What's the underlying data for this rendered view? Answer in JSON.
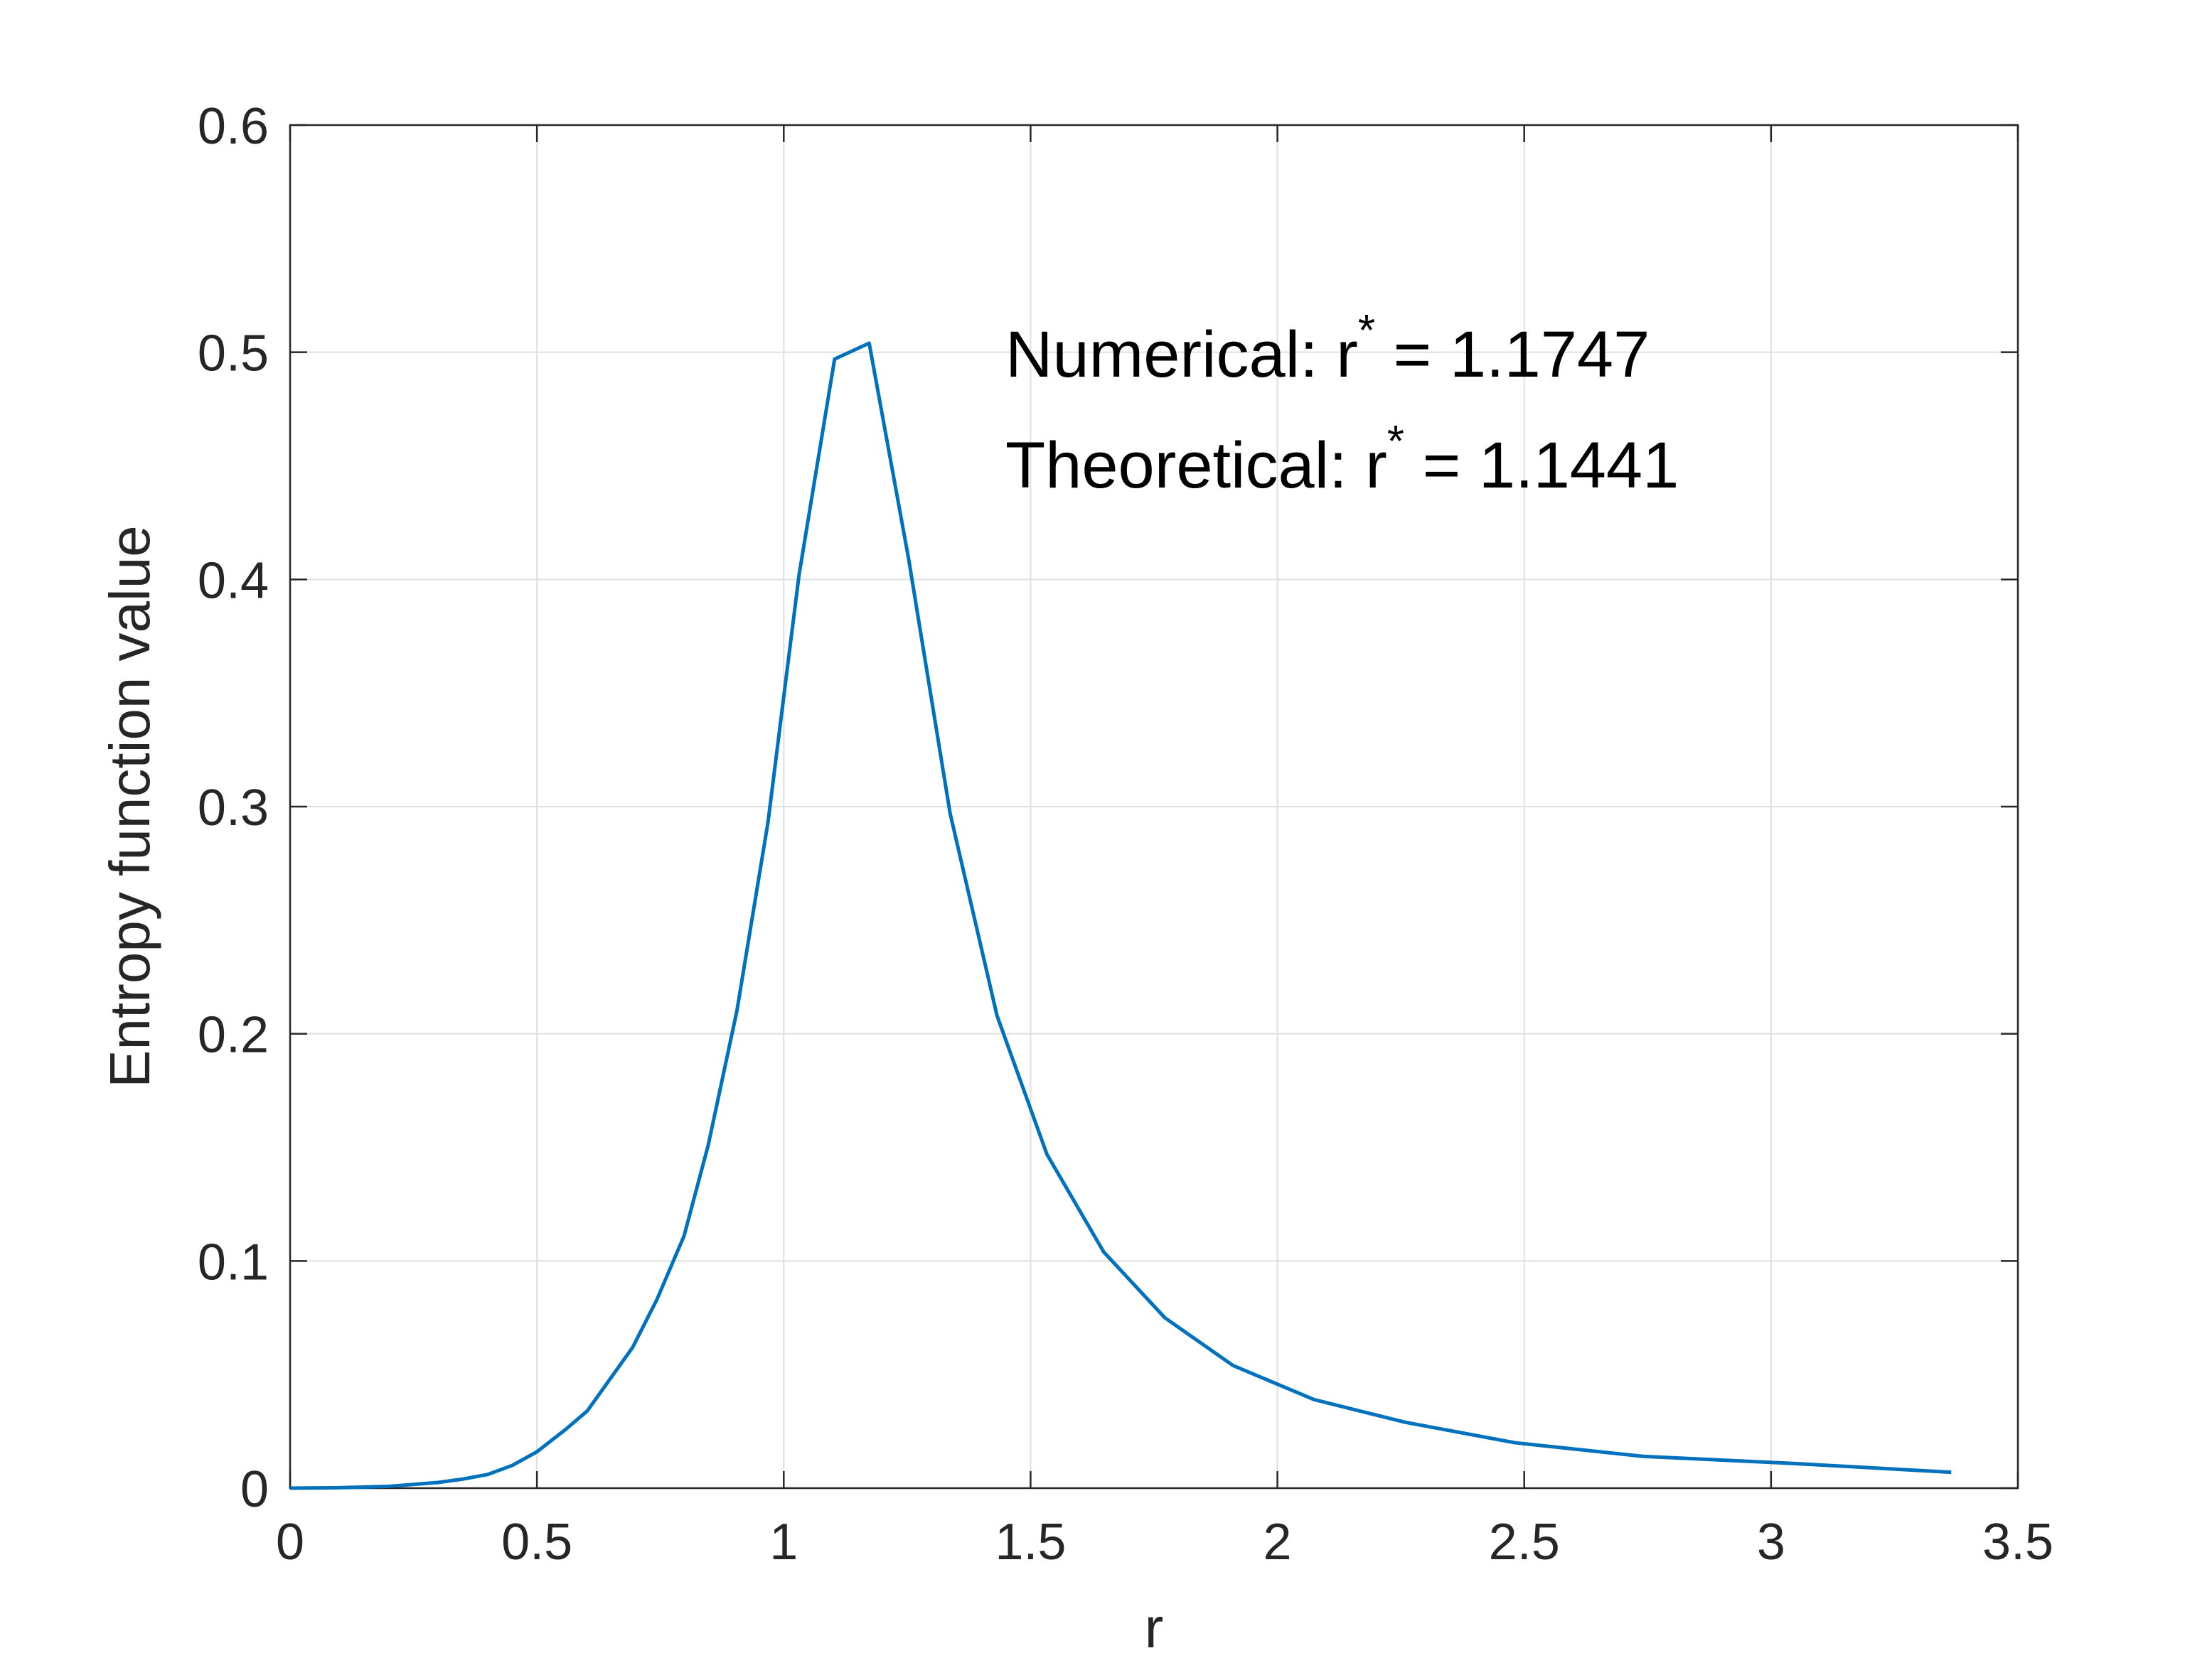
{
  "chart_data": {
    "type": "line",
    "xlabel": "r",
    "ylabel": "Entropy function value",
    "x": [
      0,
      0.1,
      0.2,
      0.3,
      0.35,
      0.4,
      0.45,
      0.5,
      0.559,
      0.602,
      0.648,
      0.694,
      0.743,
      0.798,
      0.847,
      0.905,
      0.968,
      1.031,
      1.103,
      1.173,
      1.253,
      1.337,
      1.432,
      1.533,
      1.648,
      1.772,
      1.91,
      2.074,
      2.259,
      2.481,
      2.74,
      3.034,
      3.365
    ],
    "series": [
      {
        "color": "#0072bd",
        "values": [
          0,
          0.0002,
          0.0008,
          0.0025,
          0.004,
          0.006,
          0.01,
          0.016,
          0.026,
          0.034,
          0.048,
          0.062,
          0.083,
          0.111,
          0.151,
          0.21,
          0.293,
          0.402,
          0.497,
          0.504,
          0.409,
          0.297,
          0.208,
          0.147,
          0.104,
          0.075,
          0.054,
          0.039,
          0.029,
          0.02,
          0.014,
          0.011,
          0.007
        ]
      }
    ],
    "xlim": [
      0,
      3.5
    ],
    "xticks": [
      0,
      0.5,
      1,
      1.5,
      2,
      2.5,
      3,
      3.5
    ],
    "ylim": [
      0,
      0.6
    ],
    "yticks": [
      0,
      0.1,
      0.2,
      0.3,
      0.4,
      0.5,
      0.6
    ],
    "grid": true,
    "annotations": [
      {
        "text": "Numerical:  r",
        "sup": "*",
        "rest": " = 1.1747"
      },
      {
        "text": "Theoretical: r",
        "sup": "*",
        "rest": " = 1.1441"
      }
    ]
  }
}
